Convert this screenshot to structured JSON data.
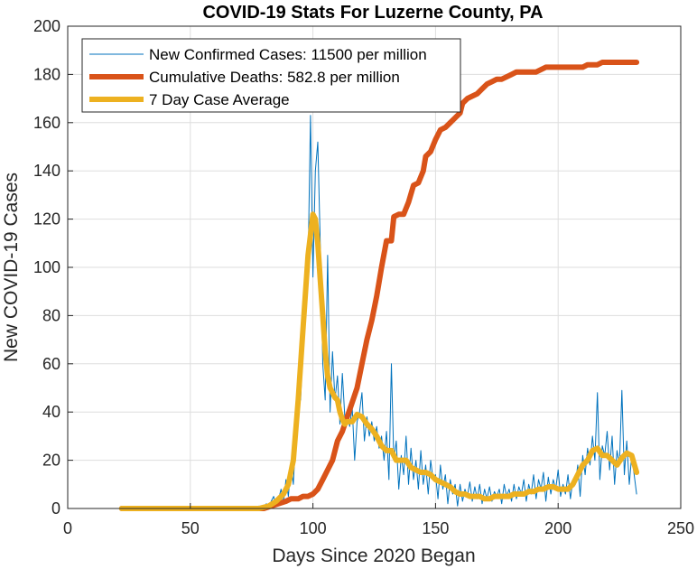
{
  "chart_data": {
    "type": "line",
    "title": "COVID-19 Stats For Luzerne County, PA",
    "xlabel": "Days Since 2020 Began",
    "ylabel": "New COVID-19 Cases",
    "xlim": [
      0,
      250
    ],
    "ylim": [
      0,
      200
    ],
    "xticks": [
      0,
      50,
      100,
      150,
      200,
      250
    ],
    "yticks": [
      0,
      20,
      40,
      60,
      80,
      100,
      120,
      140,
      160,
      180,
      200
    ],
    "grid": true,
    "legend_position": "top-left",
    "series": [
      {
        "name": "New Confirmed Cases: 11500 per million",
        "color": "#0072BD",
        "style": "thin",
        "points": [
          [
            22,
            0
          ],
          [
            40,
            0
          ],
          [
            60,
            0
          ],
          [
            75,
            0
          ],
          [
            78,
            1
          ],
          [
            80,
            0
          ],
          [
            81,
            2
          ],
          [
            82,
            0
          ],
          [
            83,
            3
          ],
          [
            84,
            5
          ],
          [
            85,
            1
          ],
          [
            86,
            4
          ],
          [
            87,
            8
          ],
          [
            88,
            2
          ],
          [
            89,
            12
          ],
          [
            90,
            5
          ],
          [
            91,
            18
          ],
          [
            92,
            10
          ],
          [
            93,
            30
          ],
          [
            94,
            55
          ],
          [
            95,
            45
          ],
          [
            96,
            70
          ],
          [
            97,
            102
          ],
          [
            98,
            100
          ],
          [
            99,
            163
          ],
          [
            100,
            96
          ],
          [
            101,
            140
          ],
          [
            102,
            152
          ],
          [
            103,
            110
          ],
          [
            104,
            60
          ],
          [
            105,
            45
          ],
          [
            106,
            105
          ],
          [
            107,
            40
          ],
          [
            108,
            65
          ],
          [
            109,
            45
          ],
          [
            110,
            55
          ],
          [
            111,
            35
          ],
          [
            112,
            56
          ],
          [
            113,
            38
          ],
          [
            114,
            40
          ],
          [
            115,
            34
          ],
          [
            116,
            42
          ],
          [
            117,
            20
          ],
          [
            118,
            36
          ],
          [
            119,
            40
          ],
          [
            120,
            48
          ],
          [
            121,
            28
          ],
          [
            122,
            38
          ],
          [
            123,
            30
          ],
          [
            124,
            36
          ],
          [
            125,
            28
          ],
          [
            126,
            34
          ],
          [
            127,
            25
          ],
          [
            128,
            30
          ],
          [
            129,
            20
          ],
          [
            130,
            32
          ],
          [
            131,
            12
          ],
          [
            132,
            60
          ],
          [
            133,
            20
          ],
          [
            134,
            28
          ],
          [
            135,
            8
          ],
          [
            136,
            22
          ],
          [
            137,
            14
          ],
          [
            138,
            30
          ],
          [
            139,
            10
          ],
          [
            140,
            25
          ],
          [
            141,
            12
          ],
          [
            142,
            20
          ],
          [
            143,
            8
          ],
          [
            144,
            24
          ],
          [
            145,
            10
          ],
          [
            146,
            18
          ],
          [
            147,
            6
          ],
          [
            148,
            20
          ],
          [
            149,
            12
          ],
          [
            150,
            14
          ],
          [
            151,
            4
          ],
          [
            152,
            18
          ],
          [
            153,
            8
          ],
          [
            154,
            14
          ],
          [
            155,
            2
          ],
          [
            156,
            12
          ],
          [
            157,
            6
          ],
          [
            158,
            10
          ],
          [
            159,
            1
          ],
          [
            160,
            10
          ],
          [
            161,
            3
          ],
          [
            162,
            8
          ],
          [
            163,
            5
          ],
          [
            164,
            11
          ],
          [
            165,
            3
          ],
          [
            166,
            9
          ],
          [
            167,
            4
          ],
          [
            168,
            10
          ],
          [
            169,
            2
          ],
          [
            170,
            8
          ],
          [
            171,
            4
          ],
          [
            172,
            9
          ],
          [
            173,
            3
          ],
          [
            174,
            7
          ],
          [
            175,
            5
          ],
          [
            176,
            8
          ],
          [
            177,
            2
          ],
          [
            178,
            10
          ],
          [
            179,
            5
          ],
          [
            180,
            8
          ],
          [
            181,
            3
          ],
          [
            182,
            10
          ],
          [
            183,
            4
          ],
          [
            184,
            9
          ],
          [
            185,
            6
          ],
          [
            186,
            12
          ],
          [
            187,
            3
          ],
          [
            188,
            10
          ],
          [
            189,
            6
          ],
          [
            190,
            14
          ],
          [
            191,
            4
          ],
          [
            192,
            12
          ],
          [
            193,
            8
          ],
          [
            194,
            15
          ],
          [
            195,
            3
          ],
          [
            196,
            13
          ],
          [
            197,
            6
          ],
          [
            198,
            12
          ],
          [
            199,
            8
          ],
          [
            200,
            16
          ],
          [
            201,
            5
          ],
          [
            202,
            10
          ],
          [
            203,
            6
          ],
          [
            204,
            14
          ],
          [
            205,
            4
          ],
          [
            206,
            12
          ],
          [
            207,
            10
          ],
          [
            208,
            18
          ],
          [
            209,
            5
          ],
          [
            210,
            22
          ],
          [
            211,
            14
          ],
          [
            212,
            25
          ],
          [
            213,
            18
          ],
          [
            214,
            30
          ],
          [
            215,
            20
          ],
          [
            216,
            48
          ],
          [
            217,
            12
          ],
          [
            218,
            26
          ],
          [
            219,
            22
          ],
          [
            220,
            32
          ],
          [
            221,
            16
          ],
          [
            222,
            30
          ],
          [
            223,
            10
          ],
          [
            224,
            24
          ],
          [
            225,
            18
          ],
          [
            226,
            49
          ],
          [
            227,
            14
          ],
          [
            228,
            28
          ],
          [
            229,
            10
          ],
          [
            230,
            22
          ],
          [
            231,
            14
          ],
          [
            232,
            6
          ]
        ]
      },
      {
        "name": "Cumulative Deaths: 582.8 per million",
        "color": "#D95319",
        "style": "thick",
        "points": [
          [
            22,
            0
          ],
          [
            80,
            0
          ],
          [
            83,
            1
          ],
          [
            86,
            2
          ],
          [
            89,
            3
          ],
          [
            91,
            4
          ],
          [
            94,
            4
          ],
          [
            96,
            5
          ],
          [
            98,
            5
          ],
          [
            100,
            6
          ],
          [
            102,
            8
          ],
          [
            104,
            12
          ],
          [
            106,
            16
          ],
          [
            108,
            20
          ],
          [
            110,
            28
          ],
          [
            112,
            32
          ],
          [
            114,
            38
          ],
          [
            116,
            44
          ],
          [
            118,
            50
          ],
          [
            120,
            60
          ],
          [
            122,
            70
          ],
          [
            124,
            78
          ],
          [
            126,
            88
          ],
          [
            128,
            100
          ],
          [
            130,
            111
          ],
          [
            131,
            111
          ],
          [
            132,
            111
          ],
          [
            133,
            121
          ],
          [
            135,
            122
          ],
          [
            137,
            122
          ],
          [
            139,
            127
          ],
          [
            141,
            134
          ],
          [
            143,
            135
          ],
          [
            145,
            140
          ],
          [
            146,
            146
          ],
          [
            148,
            148
          ],
          [
            150,
            153
          ],
          [
            152,
            157
          ],
          [
            154,
            158
          ],
          [
            156,
            160
          ],
          [
            158,
            162
          ],
          [
            160,
            164
          ],
          [
            161,
            168
          ],
          [
            163,
            170
          ],
          [
            165,
            171
          ],
          [
            167,
            172
          ],
          [
            169,
            174
          ],
          [
            171,
            176
          ],
          [
            173,
            177
          ],
          [
            175,
            178
          ],
          [
            177,
            178
          ],
          [
            179,
            179
          ],
          [
            181,
            180
          ],
          [
            183,
            181
          ],
          [
            185,
            181
          ],
          [
            187,
            181
          ],
          [
            189,
            181
          ],
          [
            191,
            181
          ],
          [
            193,
            182
          ],
          [
            195,
            183
          ],
          [
            198,
            183
          ],
          [
            201,
            183
          ],
          [
            204,
            183
          ],
          [
            207,
            183
          ],
          [
            210,
            183
          ],
          [
            212,
            184
          ],
          [
            214,
            184
          ],
          [
            216,
            184
          ],
          [
            218,
            185
          ],
          [
            220,
            185
          ],
          [
            222,
            185
          ],
          [
            224,
            185
          ],
          [
            226,
            185
          ],
          [
            228,
            185
          ],
          [
            230,
            185
          ],
          [
            232,
            185
          ]
        ]
      },
      {
        "name": "7 Day Case Average",
        "color": "#EDB120",
        "style": "thick",
        "points": [
          [
            22,
            0
          ],
          [
            60,
            0
          ],
          [
            78,
            0
          ],
          [
            82,
            1
          ],
          [
            85,
            3
          ],
          [
            88,
            6
          ],
          [
            90,
            10
          ],
          [
            92,
            20
          ],
          [
            94,
            45
          ],
          [
            96,
            75
          ],
          [
            98,
            105
          ],
          [
            100,
            122
          ],
          [
            101,
            120
          ],
          [
            102,
            110
          ],
          [
            103,
            95
          ],
          [
            104,
            80
          ],
          [
            105,
            65
          ],
          [
            106,
            55
          ],
          [
            107,
            50
          ],
          [
            108,
            48
          ],
          [
            109,
            46
          ],
          [
            110,
            45
          ],
          [
            111,
            40
          ],
          [
            112,
            37
          ],
          [
            113,
            35
          ],
          [
            114,
            36
          ],
          [
            116,
            36
          ],
          [
            118,
            39
          ],
          [
            120,
            38
          ],
          [
            122,
            35
          ],
          [
            124,
            33
          ],
          [
            126,
            30
          ],
          [
            128,
            26
          ],
          [
            130,
            24
          ],
          [
            132,
            24
          ],
          [
            134,
            20
          ],
          [
            136,
            20
          ],
          [
            138,
            20
          ],
          [
            140,
            17
          ],
          [
            142,
            16
          ],
          [
            144,
            15
          ],
          [
            146,
            15
          ],
          [
            148,
            14
          ],
          [
            150,
            12
          ],
          [
            152,
            11
          ],
          [
            154,
            10
          ],
          [
            156,
            9
          ],
          [
            158,
            7
          ],
          [
            160,
            6
          ],
          [
            162,
            6
          ],
          [
            164,
            5
          ],
          [
            166,
            5
          ],
          [
            168,
            5
          ],
          [
            170,
            4
          ],
          [
            172,
            4
          ],
          [
            174,
            5
          ],
          [
            176,
            5
          ],
          [
            178,
            5
          ],
          [
            180,
            5
          ],
          [
            182,
            6
          ],
          [
            184,
            6
          ],
          [
            186,
            6
          ],
          [
            188,
            7
          ],
          [
            190,
            7
          ],
          [
            192,
            8
          ],
          [
            194,
            8
          ],
          [
            196,
            9
          ],
          [
            198,
            9
          ],
          [
            200,
            8
          ],
          [
            202,
            8
          ],
          [
            204,
            8
          ],
          [
            206,
            10
          ],
          [
            208,
            14
          ],
          [
            210,
            18
          ],
          [
            212,
            20
          ],
          [
            214,
            24
          ],
          [
            216,
            25
          ],
          [
            218,
            22
          ],
          [
            220,
            22
          ],
          [
            222,
            20
          ],
          [
            224,
            18
          ],
          [
            226,
            21
          ],
          [
            228,
            23
          ],
          [
            230,
            22
          ],
          [
            232,
            15
          ]
        ]
      }
    ]
  }
}
